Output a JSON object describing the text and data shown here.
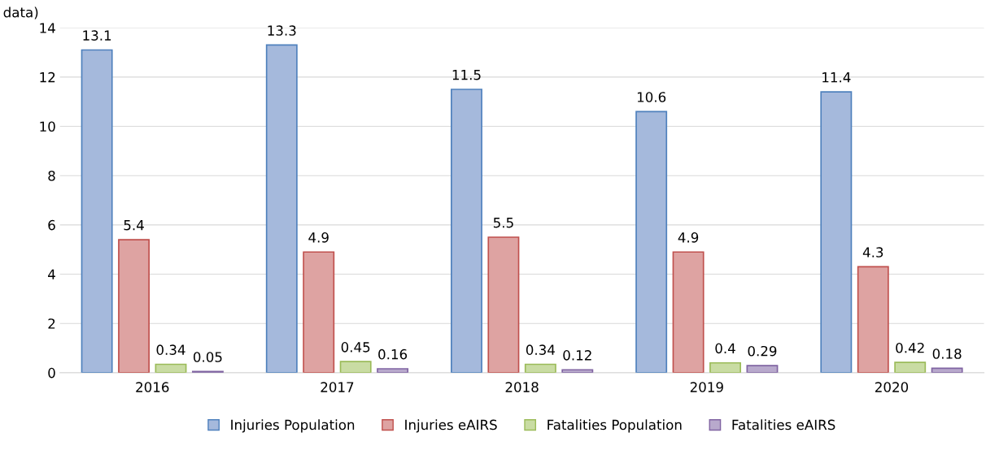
{
  "chart_data": {
    "type": "bar",
    "categories": [
      "2016",
      "2017",
      "2018",
      "2019",
      "2020"
    ],
    "series": [
      {
        "name": "Injuries Population",
        "color": "#a5b9dc",
        "values": [
          13.1,
          13.3,
          11.5,
          10.6,
          11.4
        ]
      },
      {
        "name": "Injuries eAIRS",
        "color": "#dea3a2",
        "values": [
          5.4,
          4.9,
          5.5,
          4.9,
          4.3
        ]
      },
      {
        "name": "Fatalities Population",
        "color": "#c9dca3",
        "values": [
          0.34,
          0.45,
          0.34,
          0.4,
          0.42
        ]
      },
      {
        "name": "Fatalities eAIRS",
        "color": "#b8a9cc",
        "values": [
          0.05,
          0.16,
          0.12,
          0.29,
          0.18
        ]
      }
    ],
    "ylim": [
      0,
      14
    ],
    "yticks": [
      0,
      2,
      4,
      6,
      8,
      10,
      12,
      14
    ],
    "grid": "y",
    "legend": "bottom",
    "data_labels": true,
    "annotations": [
      "data)"
    ]
  }
}
